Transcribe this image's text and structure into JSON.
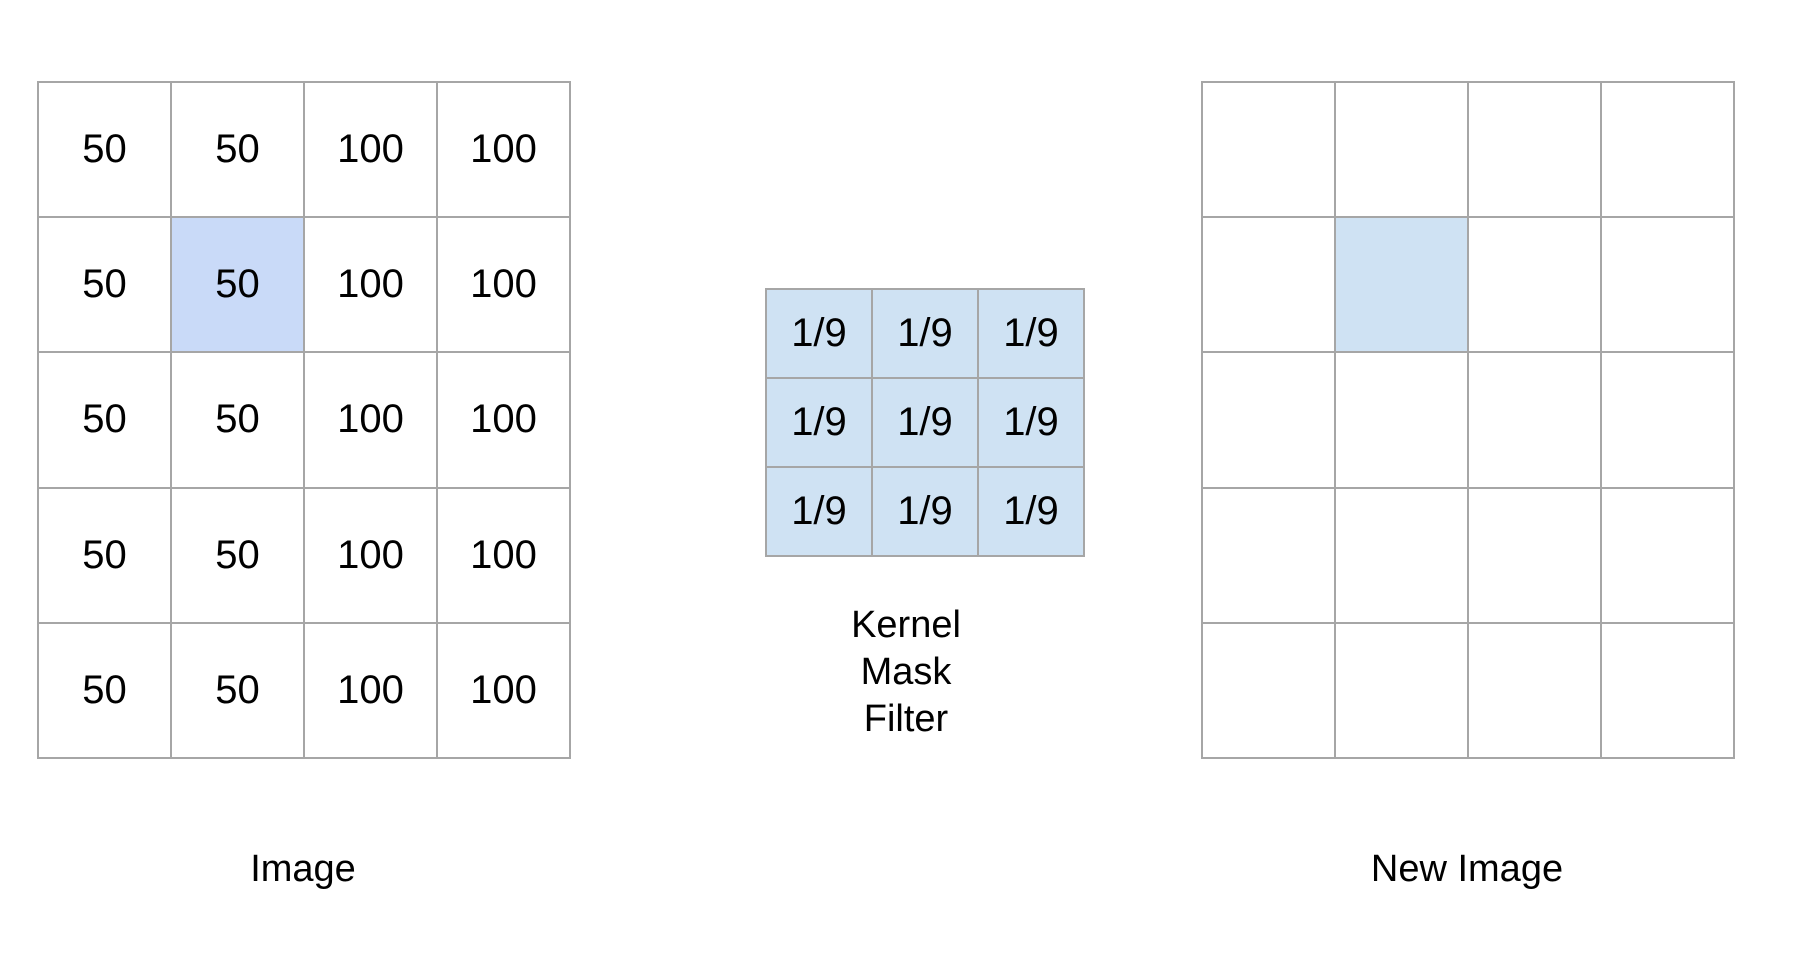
{
  "colors": {
    "grid_border": "#a6a6a6",
    "highlight_image": "#c9daf8",
    "highlight_new_image": "#cfe2f3",
    "kernel_fill": "#cfe2f3",
    "text": "#000000",
    "background": "#ffffff"
  },
  "image": {
    "caption": "Image",
    "rows": [
      [
        "50",
        "50",
        "100",
        "100"
      ],
      [
        "50",
        "50",
        "100",
        "100"
      ],
      [
        "50",
        "50",
        "100",
        "100"
      ],
      [
        "50",
        "50",
        "100",
        "100"
      ],
      [
        "50",
        "50",
        "100",
        "100"
      ]
    ],
    "highlight": {
      "row": 1,
      "col": 1
    }
  },
  "kernel": {
    "caption_lines": [
      "Kernel",
      "Mask",
      "Filter"
    ],
    "rows": [
      [
        "1/9",
        "1/9",
        "1/9"
      ],
      [
        "1/9",
        "1/9",
        "1/9"
      ],
      [
        "1/9",
        "1/9",
        "1/9"
      ]
    ]
  },
  "new_image": {
    "caption": "New Image",
    "row_count": 5,
    "col_count": 4,
    "highlight": {
      "row": 1,
      "col": 1
    }
  }
}
